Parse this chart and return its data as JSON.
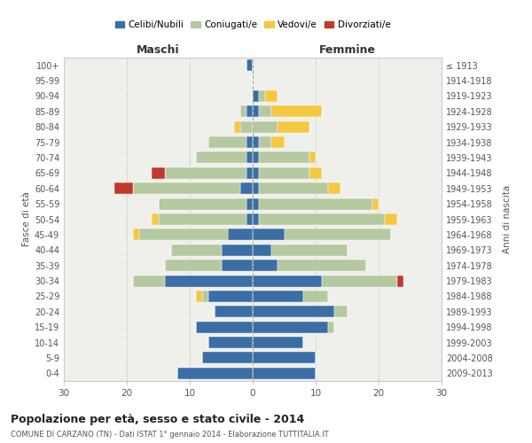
{
  "age_groups": [
    "0-4",
    "5-9",
    "10-14",
    "15-19",
    "20-24",
    "25-29",
    "30-34",
    "35-39",
    "40-44",
    "45-49",
    "50-54",
    "55-59",
    "60-64",
    "65-69",
    "70-74",
    "75-79",
    "80-84",
    "85-89",
    "90-94",
    "95-99",
    "100+"
  ],
  "birth_years": [
    "2009-2013",
    "2004-2008",
    "1999-2003",
    "1994-1998",
    "1989-1993",
    "1984-1988",
    "1979-1983",
    "1974-1978",
    "1969-1973",
    "1964-1968",
    "1959-1963",
    "1954-1958",
    "1949-1953",
    "1944-1948",
    "1939-1943",
    "1934-1938",
    "1929-1933",
    "1924-1928",
    "1919-1923",
    "1914-1918",
    "≤ 1913"
  ],
  "colors": {
    "celibe": "#3a6ea5",
    "coniugato": "#b5c9a0",
    "vedovo": "#f5c842",
    "divorziato": "#c0392b"
  },
  "maschi": {
    "celibe": [
      12,
      8,
      7,
      9,
      6,
      7,
      14,
      5,
      5,
      4,
      1,
      1,
      2,
      1,
      1,
      1,
      0,
      1,
      0,
      0,
      1
    ],
    "coniugato": [
      0,
      0,
      0,
      0,
      0,
      1,
      5,
      9,
      8,
      14,
      14,
      14,
      17,
      13,
      8,
      6,
      2,
      1,
      0,
      0,
      0
    ],
    "vedovo": [
      0,
      0,
      0,
      0,
      0,
      1,
      0,
      0,
      0,
      1,
      1,
      0,
      0,
      0,
      0,
      0,
      1,
      0,
      0,
      0,
      0
    ],
    "divorziato": [
      0,
      0,
      0,
      0,
      0,
      0,
      0,
      0,
      0,
      0,
      0,
      0,
      3,
      2,
      0,
      0,
      0,
      0,
      0,
      0,
      0
    ]
  },
  "femmine": {
    "nubile": [
      10,
      10,
      8,
      12,
      13,
      8,
      11,
      4,
      3,
      5,
      1,
      1,
      1,
      1,
      1,
      1,
      0,
      1,
      1,
      0,
      0
    ],
    "coniugata": [
      0,
      0,
      0,
      1,
      2,
      4,
      12,
      14,
      12,
      17,
      20,
      18,
      11,
      8,
      8,
      2,
      4,
      2,
      1,
      0,
      0
    ],
    "vedova": [
      0,
      0,
      0,
      0,
      0,
      0,
      0,
      0,
      0,
      0,
      2,
      1,
      2,
      2,
      1,
      2,
      5,
      8,
      2,
      0,
      0
    ],
    "divorziata": [
      0,
      0,
      0,
      0,
      0,
      0,
      1,
      0,
      0,
      0,
      0,
      0,
      0,
      0,
      0,
      0,
      0,
      0,
      0,
      0,
      0
    ]
  },
  "xlim": 30,
  "title": "Popolazione per età, sesso e stato civile - 2014",
  "subtitle": "COMUNE DI CARZANO (TN) - Dati ISTAT 1° gennaio 2014 - Elaborazione TUTTITALIA.IT",
  "ylabel_left": "Fasce di età",
  "ylabel_right": "Anni di nascita",
  "xlabel_left": "Maschi",
  "xlabel_right": "Femmine",
  "legend_labels": [
    "Celibi/Nubili",
    "Coniugati/e",
    "Vedovi/e",
    "Divorziati/e"
  ],
  "bg_color": "#efefeb",
  "grid_color": "#cccccc",
  "spine_color": "#cccccc"
}
